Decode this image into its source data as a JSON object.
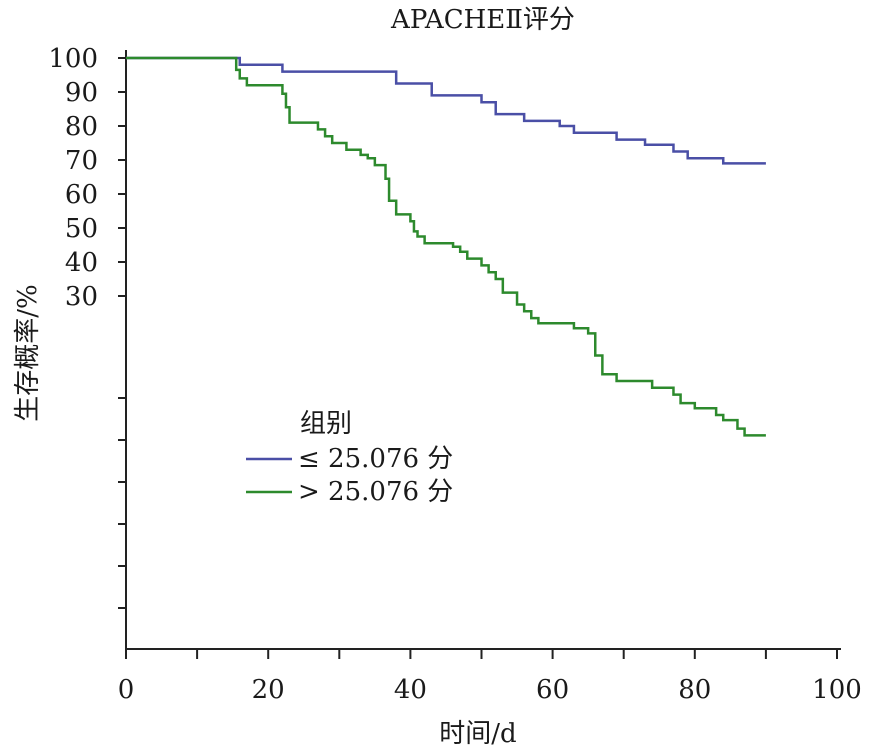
{
  "chart_data": {
    "type": "line",
    "chart_kind": "kaplan-meier step curve",
    "title": "APACHEⅡ评分",
    "xlabel": "时间/d",
    "ylabel": "生存概率/%",
    "xlim": [
      0,
      100
    ],
    "ylim": [
      0,
      100
    ],
    "x_ticks": [
      0,
      20,
      40,
      60,
      80,
      100
    ],
    "x_minor_ticks": [
      10,
      30,
      50,
      70,
      90
    ],
    "y_tick_labels": [
      100,
      90,
      80,
      70,
      60,
      50,
      40,
      30
    ],
    "y_unlabeled_ticks": [
      20,
      10,
      0
    ],
    "grid": false,
    "legend": {
      "title": "组别",
      "placement": "center-left"
    },
    "series": [
      {
        "name": "≤ 25.076 分",
        "color": "#4a4fa6",
        "steps": [
          [
            0,
            100
          ],
          [
            16,
            98
          ],
          [
            22,
            96
          ],
          [
            38,
            92.5
          ],
          [
            43,
            89
          ],
          [
            47,
            89
          ],
          [
            50,
            87
          ],
          [
            52,
            83.5
          ],
          [
            56,
            81.5
          ],
          [
            61,
            80
          ],
          [
            63,
            78
          ],
          [
            69,
            76
          ],
          [
            73,
            74.5
          ],
          [
            77,
            72.5
          ],
          [
            79,
            70.5
          ],
          [
            84,
            69
          ],
          [
            90,
            69
          ]
        ]
      },
      {
        "name": "> 25.076 分",
        "color": "#2d8a2d",
        "steps": [
          [
            0,
            100
          ],
          [
            15.5,
            96.5
          ],
          [
            16,
            94
          ],
          [
            17,
            92
          ],
          [
            22,
            89.5
          ],
          [
            22.5,
            85.5
          ],
          [
            23,
            81
          ],
          [
            27,
            79
          ],
          [
            28,
            77
          ],
          [
            29,
            75
          ],
          [
            31,
            73
          ],
          [
            33,
            71.5
          ],
          [
            34,
            70.5
          ],
          [
            35,
            68.5
          ],
          [
            36.5,
            64.5
          ],
          [
            37,
            58
          ],
          [
            38,
            54
          ],
          [
            40,
            52
          ],
          [
            40.5,
            49
          ],
          [
            41,
            47.5
          ],
          [
            42,
            45.5
          ],
          [
            46,
            44.5
          ],
          [
            47,
            43
          ],
          [
            48,
            41
          ],
          [
            50,
            39
          ],
          [
            51,
            37
          ],
          [
            52,
            35
          ],
          [
            53,
            31
          ],
          [
            55,
            27.5
          ],
          [
            56,
            25.5
          ],
          [
            57,
            23.5
          ],
          [
            58,
            22
          ],
          [
            63,
            20.5
          ],
          [
            65,
            19
          ],
          [
            66,
            12.5
          ],
          [
            67,
            7
          ],
          [
            69,
            5
          ],
          [
            74,
            3
          ],
          [
            77,
            1
          ],
          [
            78,
            -1.5
          ],
          [
            80,
            -3
          ],
          [
            83,
            -5
          ],
          [
            84,
            -6.5
          ],
          [
            86,
            -9
          ],
          [
            87,
            -11
          ],
          [
            90,
            -11
          ]
        ]
      }
    ]
  }
}
